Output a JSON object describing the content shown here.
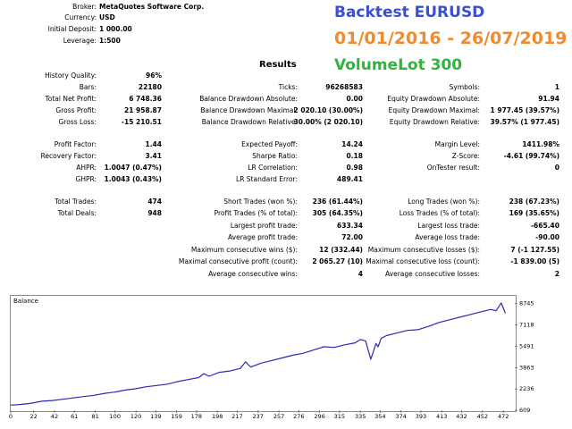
{
  "header": {
    "rows": [
      {
        "label": "Broker:",
        "value": "MetaQuotes Software Corp."
      },
      {
        "label": "Currency:",
        "value": "USD"
      },
      {
        "label": "Initial Deposit:",
        "value": "1 000.00"
      },
      {
        "label": "Leverage:",
        "value": "1:500"
      }
    ]
  },
  "overlay": {
    "title": "Backtest EURUSD",
    "dates": "01/01/2016 - 26/07/2019",
    "lot": "VolumeLot 300",
    "colors": {
      "title": "#3b4fd1",
      "dates": "#f08a2e",
      "lot": "#2fb539"
    }
  },
  "results_title": "Results",
  "col1": [
    {
      "label": "History Quality:",
      "value": "96%"
    },
    {
      "label": "Bars:",
      "value": "22180"
    },
    {
      "label": "Total Net Profit:",
      "value": "6 748.36"
    },
    {
      "label": "Gross Profit:",
      "value": "21 958.87"
    },
    {
      "label": "Gross Loss:",
      "value": "-15 210.51"
    },
    {
      "label": "Profit Factor:",
      "value": "1.44"
    },
    {
      "label": "Recovery Factor:",
      "value": "3.41"
    },
    {
      "label": "AHPR:",
      "value": "1.0047 (0.47%)"
    },
    {
      "label": "GHPR:",
      "value": "1.0043 (0.43%)"
    },
    {
      "label": "Total Trades:",
      "value": "474"
    },
    {
      "label": "Total Deals:",
      "value": "948"
    }
  ],
  "col2": [
    {
      "label": "Ticks:",
      "value": "96268583"
    },
    {
      "label": "Balance Drawdown Absolute:",
      "value": "0.00"
    },
    {
      "label": "Balance Drawdown Maximal:",
      "value": "2 020.10 (30.00%)"
    },
    {
      "label": "Balance Drawdown Relative:",
      "value": "30.00% (2 020.10)"
    },
    {
      "label": "Expected Payoff:",
      "value": "14.24"
    },
    {
      "label": "Sharpe Ratio:",
      "value": "0.18"
    },
    {
      "label": "LR Correlation:",
      "value": "0.98"
    },
    {
      "label": "LR Standard Error:",
      "value": "489.41"
    },
    {
      "label": "Short Trades (won %):",
      "value": "236 (61.44%)"
    },
    {
      "label": "Profit Trades (% of total):",
      "value": "305 (64.35%)"
    },
    {
      "label": "Largest profit trade:",
      "value": "633.34"
    },
    {
      "label": "Average profit trade:",
      "value": "72.00"
    },
    {
      "label": "Maximum consecutive wins ($):",
      "value": "12 (332.44)"
    },
    {
      "label": "Maximal consecutive profit (count):",
      "value": "2 065.27 (10)"
    },
    {
      "label": "Average consecutive wins:",
      "value": "4"
    }
  ],
  "col3": [
    {
      "label": "Symbols:",
      "value": "1"
    },
    {
      "label": "Equity Drawdown Absolute:",
      "value": "91.94"
    },
    {
      "label": "Equity Drawdown Maximal:",
      "value": "1 977.45 (39.57%)"
    },
    {
      "label": "Equity Drawdown Relative:",
      "value": "39.57% (1 977.45)"
    },
    {
      "label": "Margin Level:",
      "value": "1411.98%"
    },
    {
      "label": "Z-Score:",
      "value": "-4.61 (99.74%)"
    },
    {
      "label": "OnTester result:",
      "value": "0"
    },
    {
      "label": "Long Trades (won %):",
      "value": "238 (67.23%)"
    },
    {
      "label": "Loss Trades (% of total):",
      "value": "169 (35.65%)"
    },
    {
      "label": "Largest loss trade:",
      "value": "-665.40"
    },
    {
      "label": "Average loss trade:",
      "value": "-90.00"
    },
    {
      "label": "Maximum consecutive losses ($):",
      "value": "7 (-1 127.55)"
    },
    {
      "label": "Maximal consecutive loss (count):",
      "value": "-1 839.00 (5)"
    },
    {
      "label": "Average consecutive losses:",
      "value": "2"
    }
  ],
  "chart_data": {
    "type": "line",
    "title": "Balance",
    "xlabel": "",
    "ylabel": "",
    "x_ticks": [
      0,
      22,
      42,
      61,
      81,
      100,
      120,
      139,
      159,
      178,
      198,
      217,
      237,
      257,
      276,
      296,
      315,
      335,
      354,
      374,
      393,
      413,
      432,
      452,
      472
    ],
    "y_ticks": [
      609,
      2236,
      3863,
      5491,
      7118,
      8745
    ],
    "xlim": [
      0,
      483
    ],
    "ylim": [
      609,
      9200
    ],
    "grid": false,
    "line_color": "#2a2ab8",
    "series": [
      {
        "x": [
          0,
          10,
          20,
          30,
          40,
          50,
          60,
          70,
          80,
          90,
          100,
          110,
          120,
          130,
          140,
          150,
          160,
          170,
          180,
          185,
          190,
          200,
          210,
          220,
          225,
          230,
          240,
          250,
          260,
          270,
          280,
          290,
          300,
          310,
          320,
          330,
          335,
          340,
          345,
          350,
          352,
          355,
          360,
          370,
          380,
          390,
          400,
          410,
          420,
          430,
          440,
          450,
          460,
          465,
          470,
          474
        ],
        "y": [
          1000,
          1050,
          1150,
          1300,
          1350,
          1450,
          1550,
          1650,
          1750,
          1900,
          2000,
          2150,
          2250,
          2400,
          2500,
          2600,
          2800,
          2950,
          3100,
          3400,
          3200,
          3500,
          3600,
          3800,
          4300,
          3900,
          4200,
          4400,
          4600,
          4800,
          4950,
          5200,
          5450,
          5400,
          5600,
          5750,
          6000,
          5900,
          4500,
          5700,
          5450,
          6100,
          6300,
          6500,
          6700,
          6750,
          7000,
          7300,
          7500,
          7700,
          7900,
          8100,
          8300,
          8200,
          8800,
          8000
        ]
      }
    ]
  }
}
